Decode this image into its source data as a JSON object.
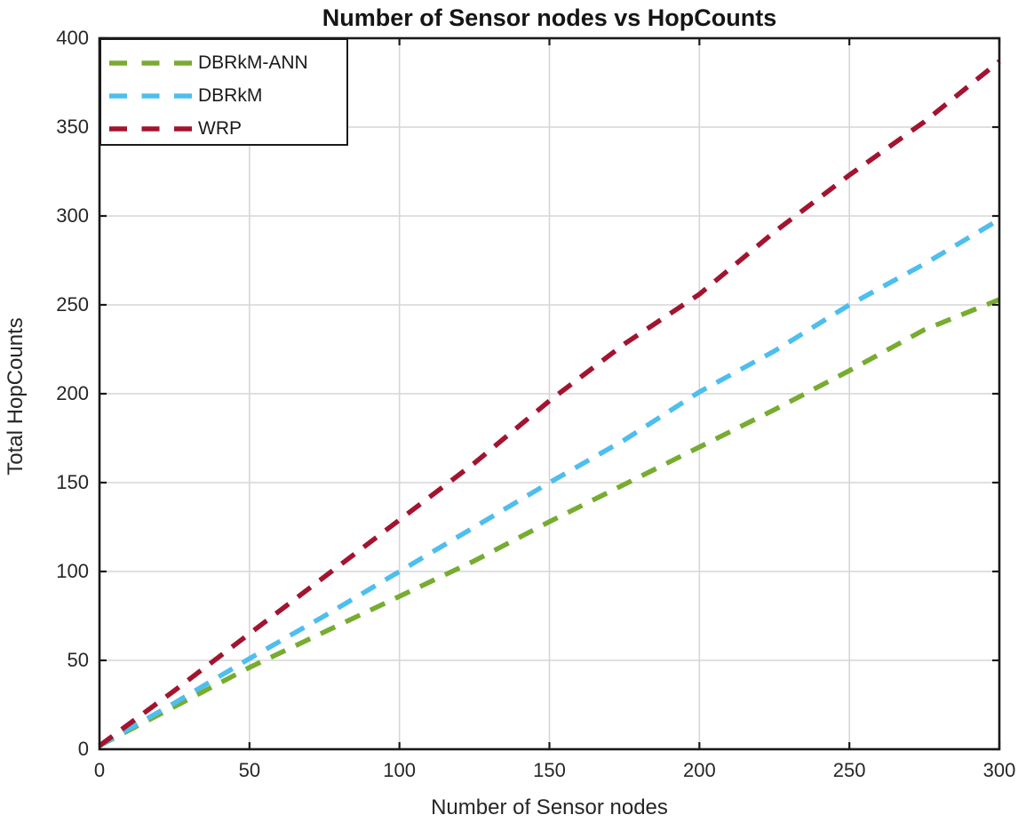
{
  "chart_data": {
    "type": "line",
    "title": "Number of Sensor nodes vs HopCounts",
    "xlabel": "Number of Sensor nodes",
    "ylabel": "Total HopCounts",
    "xlim": [
      0,
      300
    ],
    "ylim": [
      0,
      400
    ],
    "xticks": [
      0,
      50,
      100,
      150,
      200,
      250,
      300
    ],
    "yticks": [
      0,
      50,
      100,
      150,
      200,
      250,
      300,
      350,
      400
    ],
    "grid": true,
    "legend_position": "top-left",
    "line_style": "dashed",
    "x": [
      0,
      25,
      50,
      75,
      100,
      125,
      150,
      175,
      200,
      225,
      250,
      275,
      300
    ],
    "series": [
      {
        "name": "DBRkM-ANN",
        "color": "#77AC30",
        "values": [
          2,
          24,
          46,
          66,
          86,
          106,
          128,
          149,
          170,
          191,
          213,
          236,
          253
        ]
      },
      {
        "name": "DBRkM",
        "color": "#4DBEEE",
        "values": [
          2,
          26,
          51,
          75,
          100,
          125,
          150,
          174,
          201,
          224,
          250,
          273,
          298
        ]
      },
      {
        "name": "WRP",
        "color": "#A2142F",
        "values": [
          2,
          33,
          65,
          97,
          129,
          161,
          196,
          228,
          256,
          291,
          323,
          353,
          387
        ]
      }
    ],
    "colors": {
      "grid": "#d6d6d6",
      "axis_box": "#1a1a1a",
      "tick_text": "#262626"
    }
  }
}
